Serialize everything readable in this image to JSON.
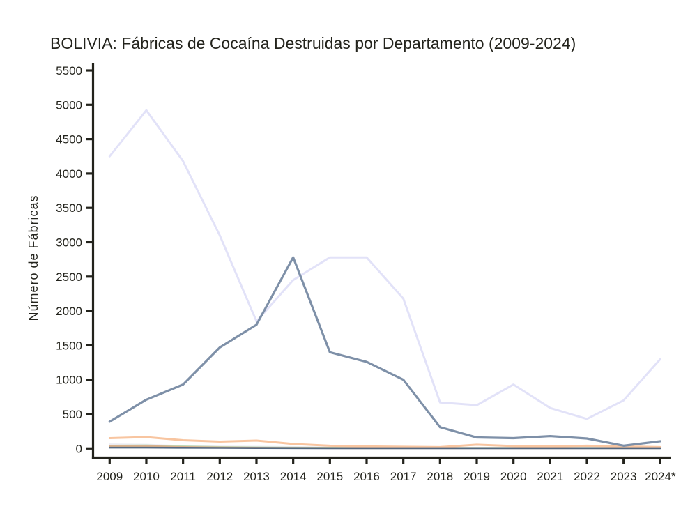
{
  "page": {
    "background_color": "#ffffff",
    "axis_color": "#23231c",
    "text_color": "#23231c"
  },
  "chart_data": {
    "type": "line",
    "title": "BOLIVIA: Fábricas de Cocaína Destruidas por Departamento (2009-2024)",
    "xlabel": "",
    "ylabel": "Número de Fábricas",
    "legend": "none",
    "grid": false,
    "ylim": [
      0,
      5500
    ],
    "ytick_step": 500,
    "yticks": [
      0,
      500,
      1000,
      1500,
      2000,
      2500,
      3000,
      3500,
      4000,
      4500,
      5000,
      5500
    ],
    "categories": [
      "2009",
      "2010",
      "2011",
      "2012",
      "2013",
      "2014",
      "2015",
      "2016",
      "2017",
      "2018",
      "2019",
      "2020",
      "2021",
      "2022",
      "2023",
      "2024*"
    ],
    "series": [
      {
        "name": "lavender",
        "color": "#e2e2f8",
        "values": [
          4250,
          4920,
          4180,
          3100,
          1850,
          2450,
          2780,
          2780,
          2180,
          670,
          630,
          930,
          590,
          430,
          700,
          1300
        ]
      },
      {
        "name": "lightgray",
        "color": "#ededf4",
        "values": [
          60,
          55,
          35,
          28,
          25,
          20,
          15,
          12,
          12,
          10,
          10,
          10,
          10,
          10,
          10,
          10
        ]
      },
      {
        "name": "lightgreen",
        "color": "#bfdcb8",
        "values": [
          40,
          45,
          30,
          20,
          15,
          12,
          10,
          8,
          8,
          8,
          8,
          8,
          8,
          8,
          8,
          8
        ]
      },
      {
        "name": "tan",
        "color": "#d7b18c",
        "values": [
          30,
          35,
          20,
          14,
          10,
          8,
          6,
          5,
          5,
          5,
          5,
          5,
          5,
          5,
          5,
          5
        ]
      },
      {
        "name": "peach",
        "color": "#f8c5a0",
        "values": [
          150,
          165,
          120,
          100,
          115,
          65,
          40,
          30,
          25,
          20,
          55,
          35,
          30,
          40,
          30,
          20
        ]
      },
      {
        "name": "darkslate",
        "color": "#546880",
        "values": [
          12,
          12,
          10,
          8,
          6,
          5,
          4,
          4,
          4,
          4,
          4,
          4,
          4,
          4,
          4,
          4
        ]
      },
      {
        "name": "slate",
        "color": "#7e90a8",
        "values": [
          390,
          710,
          930,
          1470,
          1800,
          2780,
          1400,
          1260,
          1000,
          310,
          160,
          150,
          180,
          145,
          40,
          105
        ]
      }
    ]
  }
}
